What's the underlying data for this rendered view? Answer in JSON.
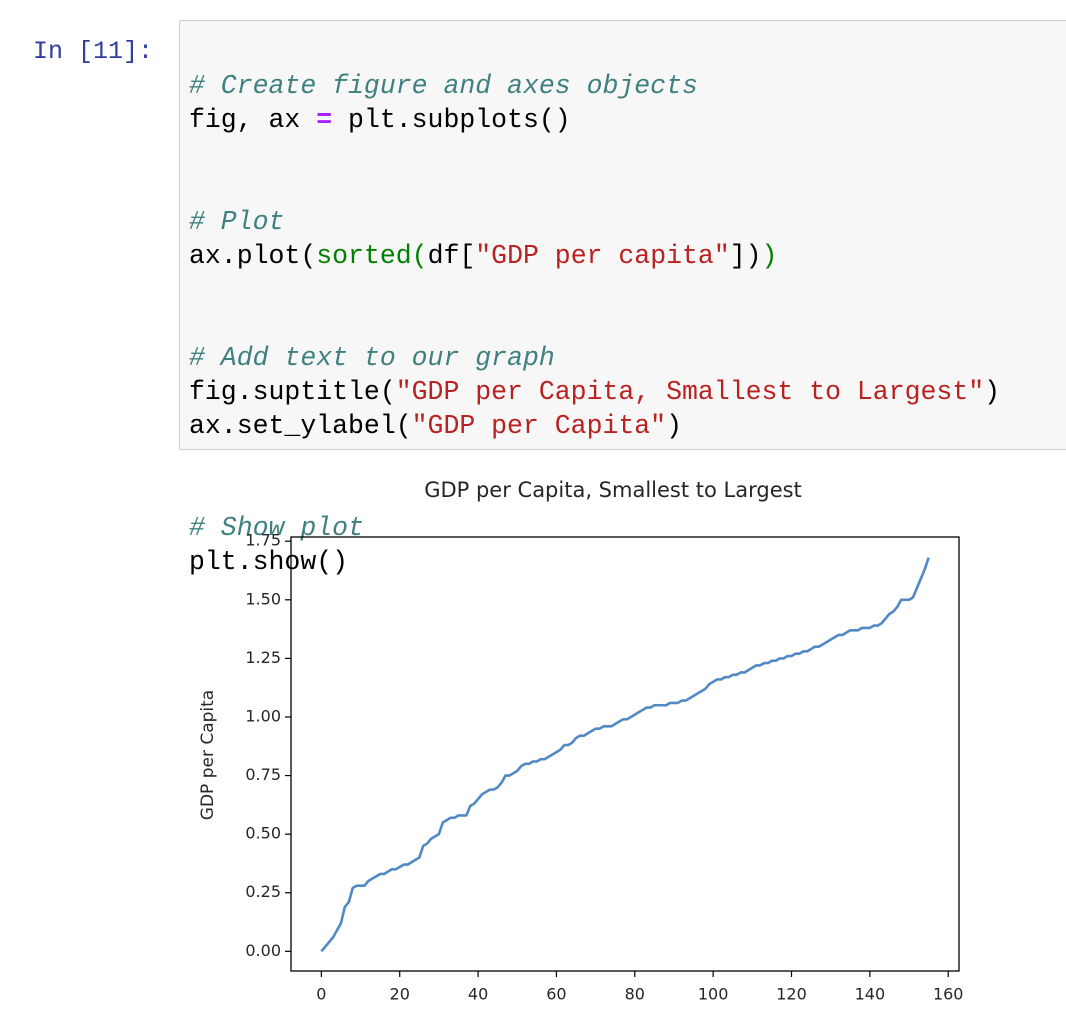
{
  "prompt": "In [11]:",
  "code": {
    "blocks": [
      [
        [
          "# Create figure and axes objects"
        ],
        [
          "fig, ax ",
          "=",
          " plt.subplots()"
        ]
      ],
      [
        [
          "# Plot"
        ],
        [
          "ax.plot(",
          "sorted",
          "(",
          "df[",
          "\"GDP per capita\"",
          "])",
          ")"
        ]
      ],
      [
        [
          "# Add text to our graph"
        ],
        [
          "fig.suptitle(",
          "\"GDP per Capita, Smallest to Largest\"",
          ")"
        ],
        [
          "ax.set_ylabel(",
          "\"GDP per Capita\"",
          ")"
        ]
      ],
      [
        [
          "# Show plot"
        ],
        [
          "plt.show()"
        ]
      ]
    ]
  },
  "chart_data": {
    "type": "line",
    "title": "GDP per Capita, Smallest to Largest",
    "y_label": "GDP per Capita",
    "color": "#5189c4",
    "x": [
      0,
      1,
      2,
      3,
      4,
      5,
      6,
      7,
      8,
      9,
      10,
      11,
      12,
      13,
      14,
      15,
      16,
      17,
      18,
      19,
      20,
      21,
      22,
      23,
      24,
      25,
      26,
      27,
      28,
      29,
      30,
      31,
      32,
      33,
      34,
      35,
      36,
      37,
      38,
      39,
      40,
      41,
      42,
      43,
      44,
      45,
      46,
      47,
      48,
      49,
      50,
      51,
      52,
      53,
      54,
      55,
      56,
      57,
      58,
      59,
      60,
      61,
      62,
      63,
      64,
      65,
      66,
      67,
      68,
      69,
      70,
      71,
      72,
      73,
      74,
      75,
      76,
      77,
      78,
      79,
      80,
      81,
      82,
      83,
      84,
      85,
      86,
      87,
      88,
      89,
      90,
      91,
      92,
      93,
      94,
      95,
      96,
      97,
      98,
      99,
      100,
      101,
      102,
      103,
      104,
      105,
      106,
      107,
      108,
      109,
      110,
      111,
      112,
      113,
      114,
      115,
      116,
      117,
      118,
      119,
      120,
      121,
      122,
      123,
      124,
      125,
      126,
      127,
      128,
      129,
      130,
      131,
      132,
      133,
      134,
      135,
      136,
      137,
      138,
      139,
      140,
      141,
      142,
      143,
      144,
      145,
      146,
      147,
      148,
      149,
      150,
      151,
      152,
      153,
      154,
      155
    ],
    "values": [
      0.0,
      0.02,
      0.04,
      0.06,
      0.09,
      0.12,
      0.19,
      0.21,
      0.27,
      0.28,
      0.28,
      0.28,
      0.3,
      0.31,
      0.32,
      0.33,
      0.33,
      0.34,
      0.35,
      0.35,
      0.36,
      0.37,
      0.37,
      0.38,
      0.39,
      0.4,
      0.45,
      0.46,
      0.48,
      0.49,
      0.5,
      0.55,
      0.56,
      0.57,
      0.57,
      0.58,
      0.58,
      0.58,
      0.62,
      0.63,
      0.65,
      0.67,
      0.68,
      0.69,
      0.69,
      0.7,
      0.72,
      0.75,
      0.75,
      0.76,
      0.77,
      0.79,
      0.8,
      0.8,
      0.81,
      0.81,
      0.82,
      0.82,
      0.83,
      0.84,
      0.85,
      0.86,
      0.88,
      0.88,
      0.89,
      0.91,
      0.92,
      0.92,
      0.93,
      0.94,
      0.95,
      0.95,
      0.96,
      0.96,
      0.96,
      0.97,
      0.98,
      0.99,
      0.99,
      1.0,
      1.01,
      1.02,
      1.03,
      1.04,
      1.04,
      1.05,
      1.05,
      1.05,
      1.05,
      1.06,
      1.06,
      1.06,
      1.07,
      1.07,
      1.08,
      1.09,
      1.1,
      1.11,
      1.12,
      1.14,
      1.15,
      1.16,
      1.16,
      1.17,
      1.17,
      1.18,
      1.18,
      1.19,
      1.19,
      1.2,
      1.21,
      1.22,
      1.22,
      1.23,
      1.23,
      1.24,
      1.24,
      1.25,
      1.25,
      1.26,
      1.26,
      1.27,
      1.27,
      1.28,
      1.28,
      1.29,
      1.3,
      1.3,
      1.31,
      1.32,
      1.33,
      1.34,
      1.35,
      1.35,
      1.36,
      1.37,
      1.37,
      1.37,
      1.38,
      1.38,
      1.38,
      1.39,
      1.39,
      1.4,
      1.42,
      1.44,
      1.45,
      1.47,
      1.5,
      1.5,
      1.5,
      1.51,
      1.55,
      1.59,
      1.63,
      1.68
    ],
    "xlim": [
      -7.75,
      162.75
    ],
    "xticks": [
      0,
      20,
      40,
      60,
      80,
      100,
      120,
      140,
      160
    ],
    "ylim": [
      -0.084,
      1.768
    ],
    "yticks": [
      {
        "value": 0,
        "label": "0.00"
      },
      0.25,
      {
        "value": 0.5,
        "label": "0.50"
      },
      0.75,
      {
        "value": 1,
        "label": "1.00"
      },
      1.25,
      {
        "value": 1.5,
        "label": "1.50"
      },
      1.75
    ]
  }
}
